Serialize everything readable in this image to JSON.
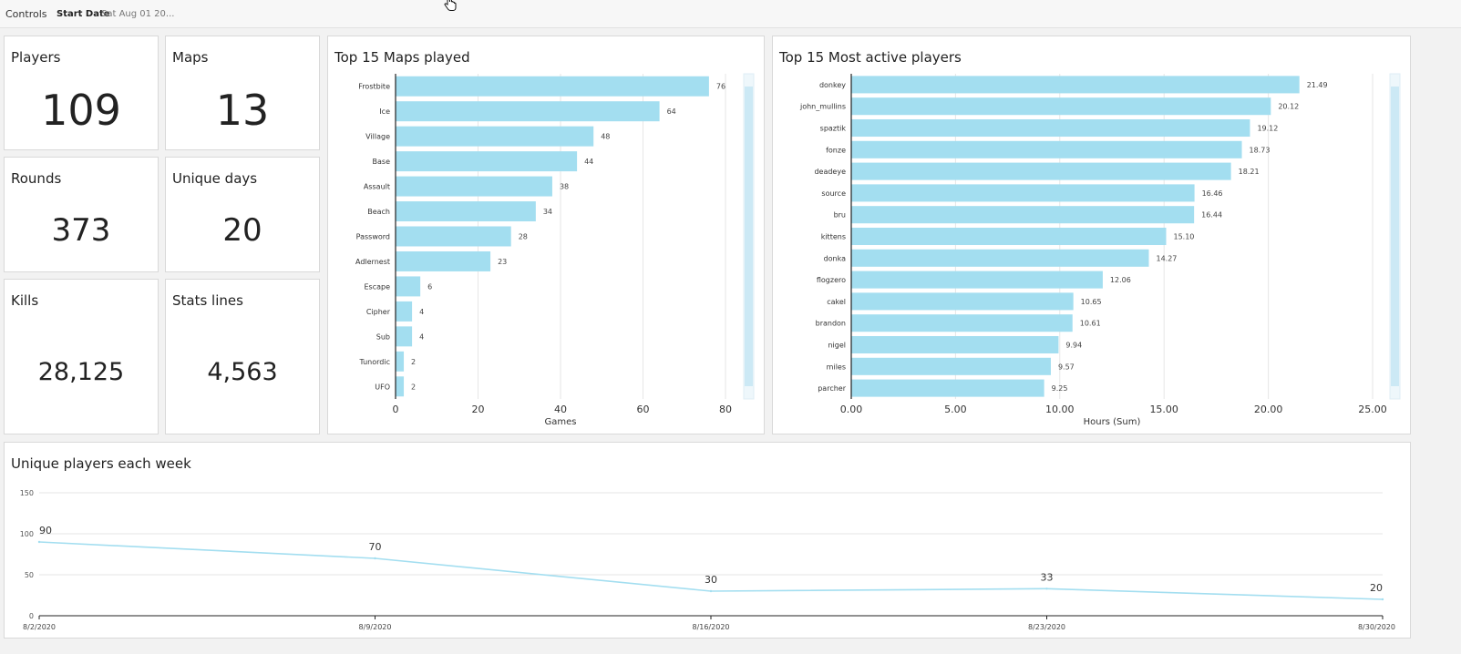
{
  "controls": {
    "label": "Controls",
    "start_date_label": "Start Date",
    "start_date_value": "Sat Aug 01 20..."
  },
  "kpis": {
    "players": {
      "label": "Players",
      "value": "109"
    },
    "maps": {
      "label": "Maps",
      "value": "13"
    },
    "rounds": {
      "label": "Rounds",
      "value": "373"
    },
    "unique_days": {
      "label": "Unique days",
      "value": "20"
    },
    "kills": {
      "label": "Kills",
      "value": "28,125"
    },
    "stats_lines": {
      "label": "Stats lines",
      "value": "4,563"
    }
  },
  "colors": {
    "bar": "#a3def0",
    "line": "#a3def0",
    "grid": "#e6e6e6",
    "scrollbar": "#cce9f5"
  },
  "chart_data": [
    {
      "id": "maps",
      "type": "bar",
      "orientation": "horizontal",
      "title": "Top 15 Maps played",
      "xlabel": "Games",
      "ylabel": "",
      "xlim": [
        0,
        80
      ],
      "xticks": [
        0,
        20,
        40,
        60,
        80
      ],
      "xtick_labels": [
        "0",
        "20",
        "40",
        "60",
        "80"
      ],
      "categories": [
        "Frostbite",
        "Ice",
        "Village",
        "Base",
        "Assault",
        "Beach",
        "Password",
        "Adlernest",
        "Escape",
        "Cipher",
        "Sub",
        "Tunordic",
        "UFO"
      ],
      "values": [
        76,
        64,
        48,
        44,
        38,
        34,
        28,
        23,
        6,
        4,
        4,
        2,
        2
      ],
      "value_labels": [
        "76",
        "64",
        "48",
        "44",
        "38",
        "34",
        "28",
        "23",
        "6",
        "4",
        "4",
        "2",
        "2"
      ],
      "grid": true,
      "legend": "none"
    },
    {
      "id": "players",
      "type": "bar",
      "orientation": "horizontal",
      "title": "Top 15 Most active players",
      "xlabel": "Hours (Sum)",
      "ylabel": "",
      "xlim": [
        0,
        25
      ],
      "xticks": [
        0,
        5,
        10,
        15,
        20,
        25
      ],
      "xtick_labels": [
        "0.00",
        "5.00",
        "10.00",
        "15.00",
        "20.00",
        "25.00"
      ],
      "categories": [
        "donkey",
        "john_mullins",
        "spaztik",
        "fonze",
        "deadeye",
        "source",
        "bru",
        "kittens",
        "donka",
        "flogzero",
        "cakel",
        "brandon",
        "nigel",
        "miles",
        "parcher"
      ],
      "values": [
        21.49,
        20.12,
        19.12,
        18.73,
        18.21,
        16.46,
        16.44,
        15.1,
        14.27,
        12.06,
        10.65,
        10.61,
        9.94,
        9.57,
        9.25
      ],
      "value_labels": [
        "21.49",
        "20.12",
        "19.12",
        "18.73",
        "18.21",
        "16.46",
        "16.44",
        "15.10",
        "14.27",
        "12.06",
        "10.65",
        "10.61",
        "9.94",
        "9.57",
        "9.25"
      ],
      "grid": true,
      "legend": "none"
    },
    {
      "id": "weekly",
      "type": "line",
      "title": "Unique players each week",
      "xlabel": "",
      "ylabel": "",
      "ylim": [
        0,
        150
      ],
      "yticks": [
        0,
        50,
        100,
        150
      ],
      "ytick_labels": [
        "0",
        "50",
        "100",
        "150"
      ],
      "x": [
        "8/2/2020",
        "8/9/2020",
        "8/16/2020",
        "8/23/2020",
        "8/30/2020"
      ],
      "values": [
        90,
        70,
        30,
        33,
        20
      ],
      "value_labels": [
        "90",
        "70",
        "30",
        "33",
        "20"
      ],
      "grid": true,
      "legend": "none"
    }
  ]
}
